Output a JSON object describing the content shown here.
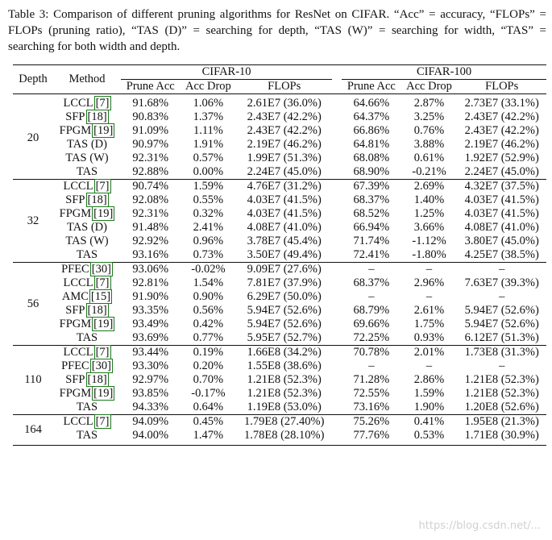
{
  "caption": "Table 3: Comparison of different pruning algorithms for ResNet on CIFAR. “Acc” = accuracy, “FLOPs” = FLOPs (pruning ratio), “TAS (D)” = searching for depth, “TAS (W)” = searching for width, “TAS” = searching for both width and depth.",
  "header": {
    "depth": "Depth",
    "method": "Method",
    "cifar10": "CIFAR-10",
    "cifar100": "CIFAR-100",
    "prune_acc": "Prune Acc",
    "acc_drop": "Acc Drop",
    "flops": "FLOPs"
  },
  "groups": [
    {
      "depth": "20",
      "blocks": [
        [
          {
            "method": "LCCL",
            "cite": "7",
            "c10": [
              "91.68%",
              "1.06%",
              "2.61E7 (36.0%)"
            ],
            "c100": [
              "64.66%",
              "2.87%",
              "2.73E7 (33.1%)"
            ]
          },
          {
            "method": "SFP",
            "cite": "18",
            "c10": [
              "90.83%",
              "1.37%",
              "2.43E7 (42.2%)"
            ],
            "c100": [
              "64.37%",
              "3.25%",
              "2.43E7 (42.2%)"
            ]
          },
          {
            "method": "FPGM",
            "cite": "19",
            "c10": [
              "91.09%",
              "1.11%",
              "2.43E7 (42.2%)"
            ],
            "c100": [
              "66.86%",
              "0.76%",
              "2.43E7 (42.2%)"
            ]
          }
        ],
        [
          {
            "method": "TAS (D)",
            "cite": "",
            "c10": [
              "90.97%",
              "1.91%",
              "2.19E7 (46.2%)"
            ],
            "c100": [
              "64.81%",
              "3.88%",
              "2.19E7 (46.2%)"
            ]
          },
          {
            "method": "TAS (W)",
            "cite": "",
            "c10": [
              "92.31%",
              "0.57%",
              "1.99E7 (51.3%)"
            ],
            "c100": [
              "68.08%",
              "0.61%",
              "1.92E7 (52.9%)"
            ]
          },
          {
            "method": "TAS",
            "cite": "",
            "c10": [
              "92.88%",
              "0.00%",
              "2.24E7 (45.0%)"
            ],
            "c100": [
              "68.90%",
              "-0.21%",
              "2.24E7 (45.0%)"
            ]
          }
        ]
      ]
    },
    {
      "depth": "32",
      "blocks": [
        [
          {
            "method": "LCCL",
            "cite": "7",
            "c10": [
              "90.74%",
              "1.59%",
              "4.76E7 (31.2%)"
            ],
            "c100": [
              "67.39%",
              "2.69%",
              "4.32E7 (37.5%)"
            ]
          },
          {
            "method": "SFP",
            "cite": "18",
            "c10": [
              "92.08%",
              "0.55%",
              "4.03E7 (41.5%)"
            ],
            "c100": [
              "68.37%",
              "1.40%",
              "4.03E7 (41.5%)"
            ]
          },
          {
            "method": "FPGM",
            "cite": "19",
            "c10": [
              "92.31%",
              "0.32%",
              "4.03E7 (41.5%)"
            ],
            "c100": [
              "68.52%",
              "1.25%",
              "4.03E7 (41.5%)"
            ]
          }
        ],
        [
          {
            "method": "TAS (D)",
            "cite": "",
            "c10": [
              "91.48%",
              "2.41%",
              "4.08E7 (41.0%)"
            ],
            "c100": [
              "66.94%",
              "3.66%",
              "4.08E7 (41.0%)"
            ]
          },
          {
            "method": "TAS (W)",
            "cite": "",
            "c10": [
              "92.92%",
              "0.96%",
              "3.78E7 (45.4%)"
            ],
            "c100": [
              "71.74%",
              "-1.12%",
              "3.80E7 (45.0%)"
            ]
          },
          {
            "method": "TAS",
            "cite": "",
            "c10": [
              "93.16%",
              "0.73%",
              "3.50E7 (49.4%)"
            ],
            "c100": [
              "72.41%",
              "-1.80%",
              "4.25E7 (38.5%)"
            ]
          }
        ]
      ]
    },
    {
      "depth": "56",
      "blocks": [
        [
          {
            "method": "PFEC",
            "cite": "30",
            "c10": [
              "93.06%",
              "-0.02%",
              "9.09E7 (27.6%)"
            ],
            "c100": [
              "–",
              "–",
              "–"
            ]
          },
          {
            "method": "LCCL",
            "cite": "7",
            "c10": [
              "92.81%",
              "1.54%",
              "7.81E7 (37.9%)"
            ],
            "c100": [
              "68.37%",
              "2.96%",
              "7.63E7 (39.3%)"
            ]
          },
          {
            "method": "AMC",
            "cite": "15",
            "c10": [
              "91.90%",
              "0.90%",
              "6.29E7 (50.0%)"
            ],
            "c100": [
              "–",
              "–",
              "–"
            ]
          },
          {
            "method": "SFP",
            "cite": "18",
            "c10": [
              "93.35%",
              "0.56%",
              "5.94E7 (52.6%)"
            ],
            "c100": [
              "68.79%",
              "2.61%",
              "5.94E7 (52.6%)"
            ]
          },
          {
            "method": "FPGM",
            "cite": "19",
            "c10": [
              "93.49%",
              "0.42%",
              "5.94E7 (52.6%)"
            ],
            "c100": [
              "69.66%",
              "1.75%",
              "5.94E7 (52.6%)"
            ]
          }
        ],
        [
          {
            "method": "TAS",
            "cite": "",
            "c10": [
              "93.69%",
              "0.77%",
              "5.95E7 (52.7%)"
            ],
            "c100": [
              "72.25%",
              "0.93%",
              "6.12E7 (51.3%)"
            ]
          }
        ]
      ]
    },
    {
      "depth": "110",
      "blocks": [
        [
          {
            "method": "LCCL",
            "cite": "7",
            "c10": [
              "93.44%",
              "0.19%",
              "1.66E8 (34.2%)"
            ],
            "c100": [
              "70.78%",
              "2.01%",
              "1.73E8 (31.3%)"
            ]
          },
          {
            "method": "PFEC",
            "cite": "30",
            "c10": [
              "93.30%",
              "0.20%",
              "1.55E8 (38.6%)"
            ],
            "c100": [
              "–",
              "–",
              "–"
            ]
          },
          {
            "method": "SFP",
            "cite": "18",
            "c10": [
              "92.97%",
              "0.70%",
              "1.21E8 (52.3%)"
            ],
            "c100": [
              "71.28%",
              "2.86%",
              "1.21E8 (52.3%)"
            ]
          },
          {
            "method": "FPGM",
            "cite": "19",
            "c10": [
              "93.85%",
              "-0.17%",
              "1.21E8 (52.3%)"
            ],
            "c100": [
              "72.55%",
              "1.59%",
              "1.21E8 (52.3%)"
            ]
          }
        ],
        [
          {
            "method": "TAS",
            "cite": "",
            "c10": [
              "94.33%",
              "0.64%",
              "1.19E8 (53.0%)"
            ],
            "c100": [
              "73.16%",
              "1.90%",
              "1.20E8 (52.6%)"
            ]
          }
        ]
      ]
    },
    {
      "depth": "164",
      "blocks": [
        [
          {
            "method": "LCCL",
            "cite": "7",
            "c10": [
              "94.09%",
              "0.45%",
              "1.79E8 (27.40%)"
            ],
            "c100": [
              "75.26%",
              "0.41%",
              "1.95E8 (21.3%)"
            ]
          }
        ],
        [
          {
            "method": "TAS",
            "cite": "",
            "c10": [
              "94.00%",
              "1.47%",
              "1.78E8 (28.10%)"
            ],
            "c100": [
              "77.76%",
              "0.53%",
              "1.71E8 (30.9%)"
            ]
          }
        ]
      ]
    }
  ],
  "watermark": "https://blog.csdn.net/..."
}
